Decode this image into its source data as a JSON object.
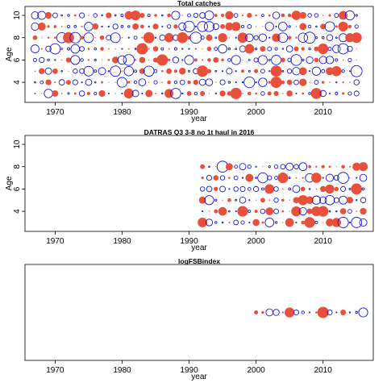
{
  "colors": {
    "positive": "#e8503c",
    "negative": "#1a1adc",
    "frame": "#000000"
  },
  "chart_data": [
    {
      "type": "scatter",
      "subtype": "bubble residual plot",
      "title": "Total catches",
      "xlabel": "year",
      "ylabel": "Age",
      "xlim": [
        1965.5,
        2017.5
      ],
      "ylim": [
        2.2,
        10.8
      ],
      "xticks": [
        1970,
        1980,
        1990,
        2000,
        2010
      ],
      "yticks": [
        4,
        6,
        8,
        10
      ],
      "years": [
        1967,
        2015
      ],
      "ages": [
        3,
        10
      ],
      "seed": 11
    },
    {
      "type": "scatter",
      "subtype": "bubble residual plot",
      "title": "DATRAS Q3 3-8 no 1t haul in 2016",
      "xlabel": "year",
      "ylabel": "Age",
      "xlim": [
        1965.5,
        2017.5
      ],
      "ylim": [
        2.2,
        10.8
      ],
      "xticks": [
        1970,
        1980,
        1990,
        2000,
        2010
      ],
      "yticks": [
        4,
        6,
        8,
        10
      ],
      "years": [
        1992,
        2016
      ],
      "ages": [
        3,
        8
      ],
      "seed": 29
    },
    {
      "type": "scatter",
      "subtype": "bubble residual plot",
      "title": "logFSBindex",
      "xlabel": "year",
      "ylabel": "",
      "xlim": [
        1965.5,
        2017.5
      ],
      "ylim": [
        0,
        1
      ],
      "xticks": [
        1970,
        1980,
        1990,
        2000,
        2010
      ],
      "yticks": [],
      "years": [
        2000,
        2016
      ],
      "ages": [
        0.5,
        0.5
      ],
      "seed": 47
    }
  ]
}
